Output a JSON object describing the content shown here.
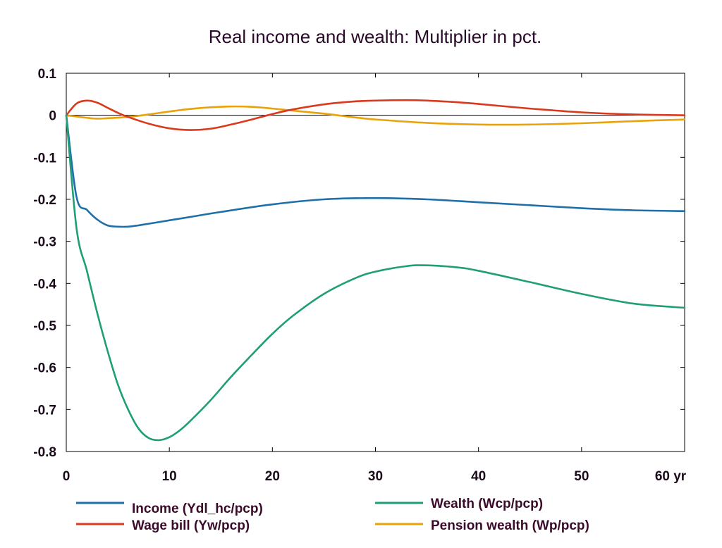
{
  "chart_data": {
    "type": "line",
    "title": "Real income and wealth: Multiplier in pct.",
    "xlabel": "",
    "ylabel": "",
    "xlim": [
      0,
      60
    ],
    "ylim": [
      -0.8,
      0.1
    ],
    "x_ticks": [
      0,
      10,
      20,
      30,
      40,
      50,
      60
    ],
    "x_tick_labels": [
      "0",
      "10",
      "20",
      "30",
      "40",
      "50",
      "60 yr"
    ],
    "y_ticks": [
      0.1,
      0,
      -0.1,
      -0.2,
      -0.3,
      -0.4,
      -0.5,
      -0.6,
      -0.7,
      -0.8
    ],
    "y_tick_labels": [
      "0.1",
      "0",
      "-0.1",
      "-0.2",
      "-0.3",
      "-0.4",
      "-0.5",
      "-0.6",
      "-0.7",
      "-0.8"
    ],
    "grid": false,
    "zero_line": true,
    "legend_position": "bottom",
    "series": [
      {
        "name": "Income (Ydl_hc/pcp)",
        "color": "#1f6fa8",
        "x": [
          0,
          1,
          2,
          3,
          4,
          5,
          6,
          7,
          8,
          10,
          12,
          15,
          20,
          25,
          30,
          35,
          40,
          45,
          50,
          55,
          60
        ],
        "y": [
          0,
          -0.195,
          -0.225,
          -0.248,
          -0.262,
          -0.265,
          -0.265,
          -0.262,
          -0.258,
          -0.25,
          -0.242,
          -0.23,
          -0.212,
          -0.2,
          -0.197,
          -0.2,
          -0.207,
          -0.214,
          -0.221,
          -0.226,
          -0.228
        ]
      },
      {
        "name": "Wealth (Wcp/pcp)",
        "color": "#1f9e78",
        "x": [
          0,
          1,
          2,
          3,
          4,
          5,
          6,
          7,
          8,
          9,
          10,
          11,
          12,
          14,
          16,
          18,
          20,
          22,
          25,
          28,
          30,
          33,
          35,
          38,
          40,
          45,
          50,
          55,
          60
        ],
        "y": [
          0,
          -0.27,
          -0.37,
          -0.47,
          -0.56,
          -0.64,
          -0.7,
          -0.745,
          -0.768,
          -0.773,
          -0.766,
          -0.75,
          -0.728,
          -0.678,
          -0.622,
          -0.57,
          -0.52,
          -0.477,
          -0.425,
          -0.388,
          -0.372,
          -0.359,
          -0.357,
          -0.362,
          -0.37,
          -0.397,
          -0.425,
          -0.448,
          -0.458
        ]
      },
      {
        "name": "Wage bill (Yw/pcp)",
        "color": "#d93a1e",
        "x": [
          0,
          1,
          2,
          3,
          4,
          5,
          6,
          8,
          10,
          12,
          14,
          16,
          18,
          20,
          22,
          25,
          28,
          30,
          33,
          35,
          38,
          40,
          45,
          50,
          55,
          60
        ],
        "y": [
          0,
          0.028,
          0.035,
          0.03,
          0.018,
          0.006,
          -0.004,
          -0.02,
          -0.031,
          -0.035,
          -0.032,
          -0.022,
          -0.01,
          0.003,
          0.014,
          0.026,
          0.033,
          0.035,
          0.036,
          0.035,
          0.031,
          0.027,
          0.016,
          0.007,
          0.002,
          0
        ]
      },
      {
        "name": "Pension wealth (Wp/pcp)",
        "color": "#e8a20a",
        "x": [
          0,
          1,
          2,
          3,
          4,
          6,
          8,
          10,
          12,
          14,
          16,
          18,
          20,
          22,
          25,
          28,
          30,
          35,
          40,
          45,
          50,
          55,
          60
        ],
        "y": [
          0,
          -0.003,
          -0.006,
          -0.008,
          -0.007,
          -0.004,
          0.002,
          0.009,
          0.015,
          0.019,
          0.021,
          0.02,
          0.016,
          0.011,
          0.004,
          -0.005,
          -0.01,
          -0.018,
          -0.022,
          -0.022,
          -0.019,
          -0.014,
          -0.01
        ]
      }
    ]
  },
  "legend": [
    {
      "label": "Income (Ydl_hc/pcp)",
      "color": "#1f6fa8"
    },
    {
      "label": "Wealth (Wcp/pcp)",
      "color": "#1f9e78"
    },
    {
      "label": "Wage bill (Yw/pcp)",
      "color": "#d93a1e"
    },
    {
      "label": "Pension wealth (Wp/pcp)",
      "color": "#e8a20a"
    }
  ]
}
